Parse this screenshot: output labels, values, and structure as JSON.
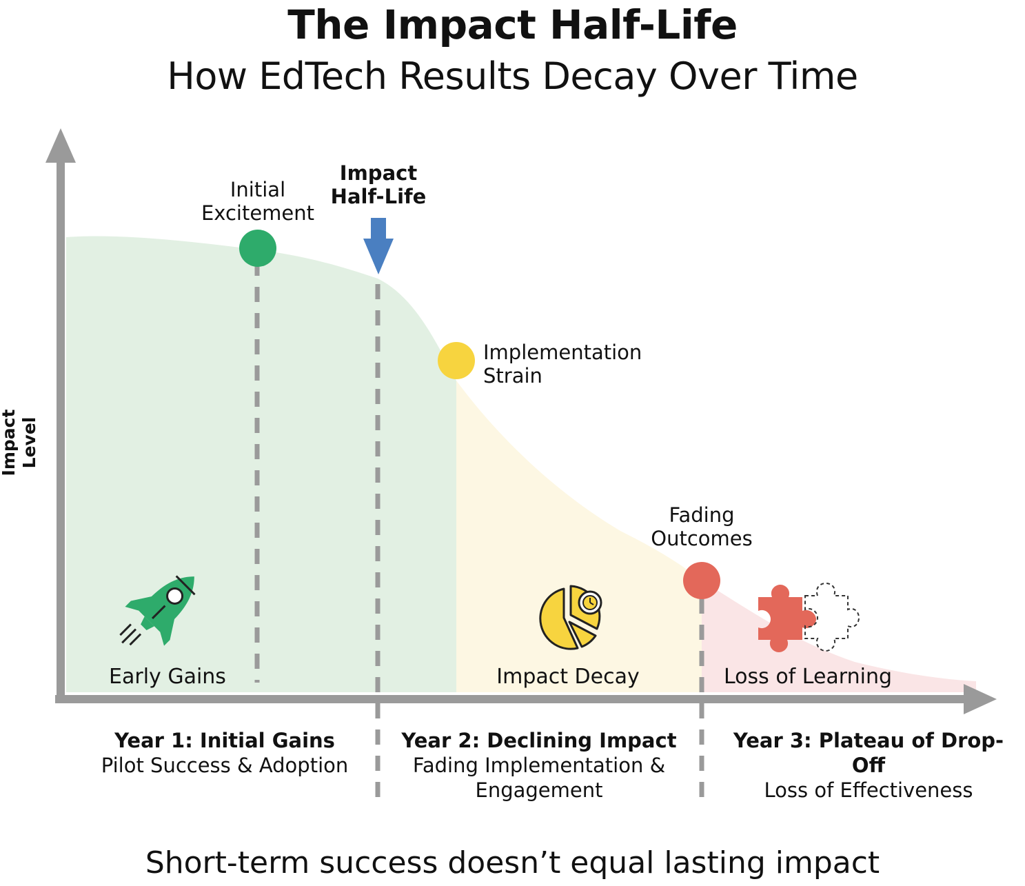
{
  "title": "The Impact Half-Life",
  "subtitle": "How EdTech Results Decay Over Time",
  "y_axis_label": "Impact Level",
  "tagline": "Short-term success doesn’t equal lasting impact",
  "markers": {
    "initial_excitement": {
      "line1": "Initial",
      "line2": "Excitement",
      "color": "#2eab6b"
    },
    "half_life": {
      "line1": "Impact",
      "line2": "Half-Life",
      "color": "#4a7fc1"
    },
    "implementation_strain": {
      "line1": "Implementation",
      "line2": "Strain",
      "color": "#f7d43f"
    },
    "fading_outcomes": {
      "line1": "Fading",
      "line2": "Outcomes",
      "color": "#e3685a"
    }
  },
  "zones": {
    "early_gains": {
      "label": "Early Gains",
      "color": "#e2f0e3",
      "icon": "rocket-icon"
    },
    "impact_decay": {
      "label": "Impact Decay",
      "color": "#fdf7e3",
      "icon": "pie-clock-icon"
    },
    "loss_of_learning": {
      "label": "Loss of Learning",
      "color": "#fae5e6",
      "icon": "puzzle-icon"
    }
  },
  "years": {
    "year1": {
      "heading": "Year 1: Initial Gains",
      "line1": "Pilot Success & Adoption",
      "line2": ""
    },
    "year2": {
      "heading": "Year 2: Declining Impact",
      "line1": "Fading Implementation &",
      "line2": "Engagement"
    },
    "year3": {
      "heading": "Year 3: Plateau of Drop-Off",
      "line1": "Loss of Effectiveness",
      "line2": ""
    }
  },
  "colors": {
    "axis": "#9a9a9a",
    "dash": "#9a9a9a",
    "text": "#111111"
  }
}
